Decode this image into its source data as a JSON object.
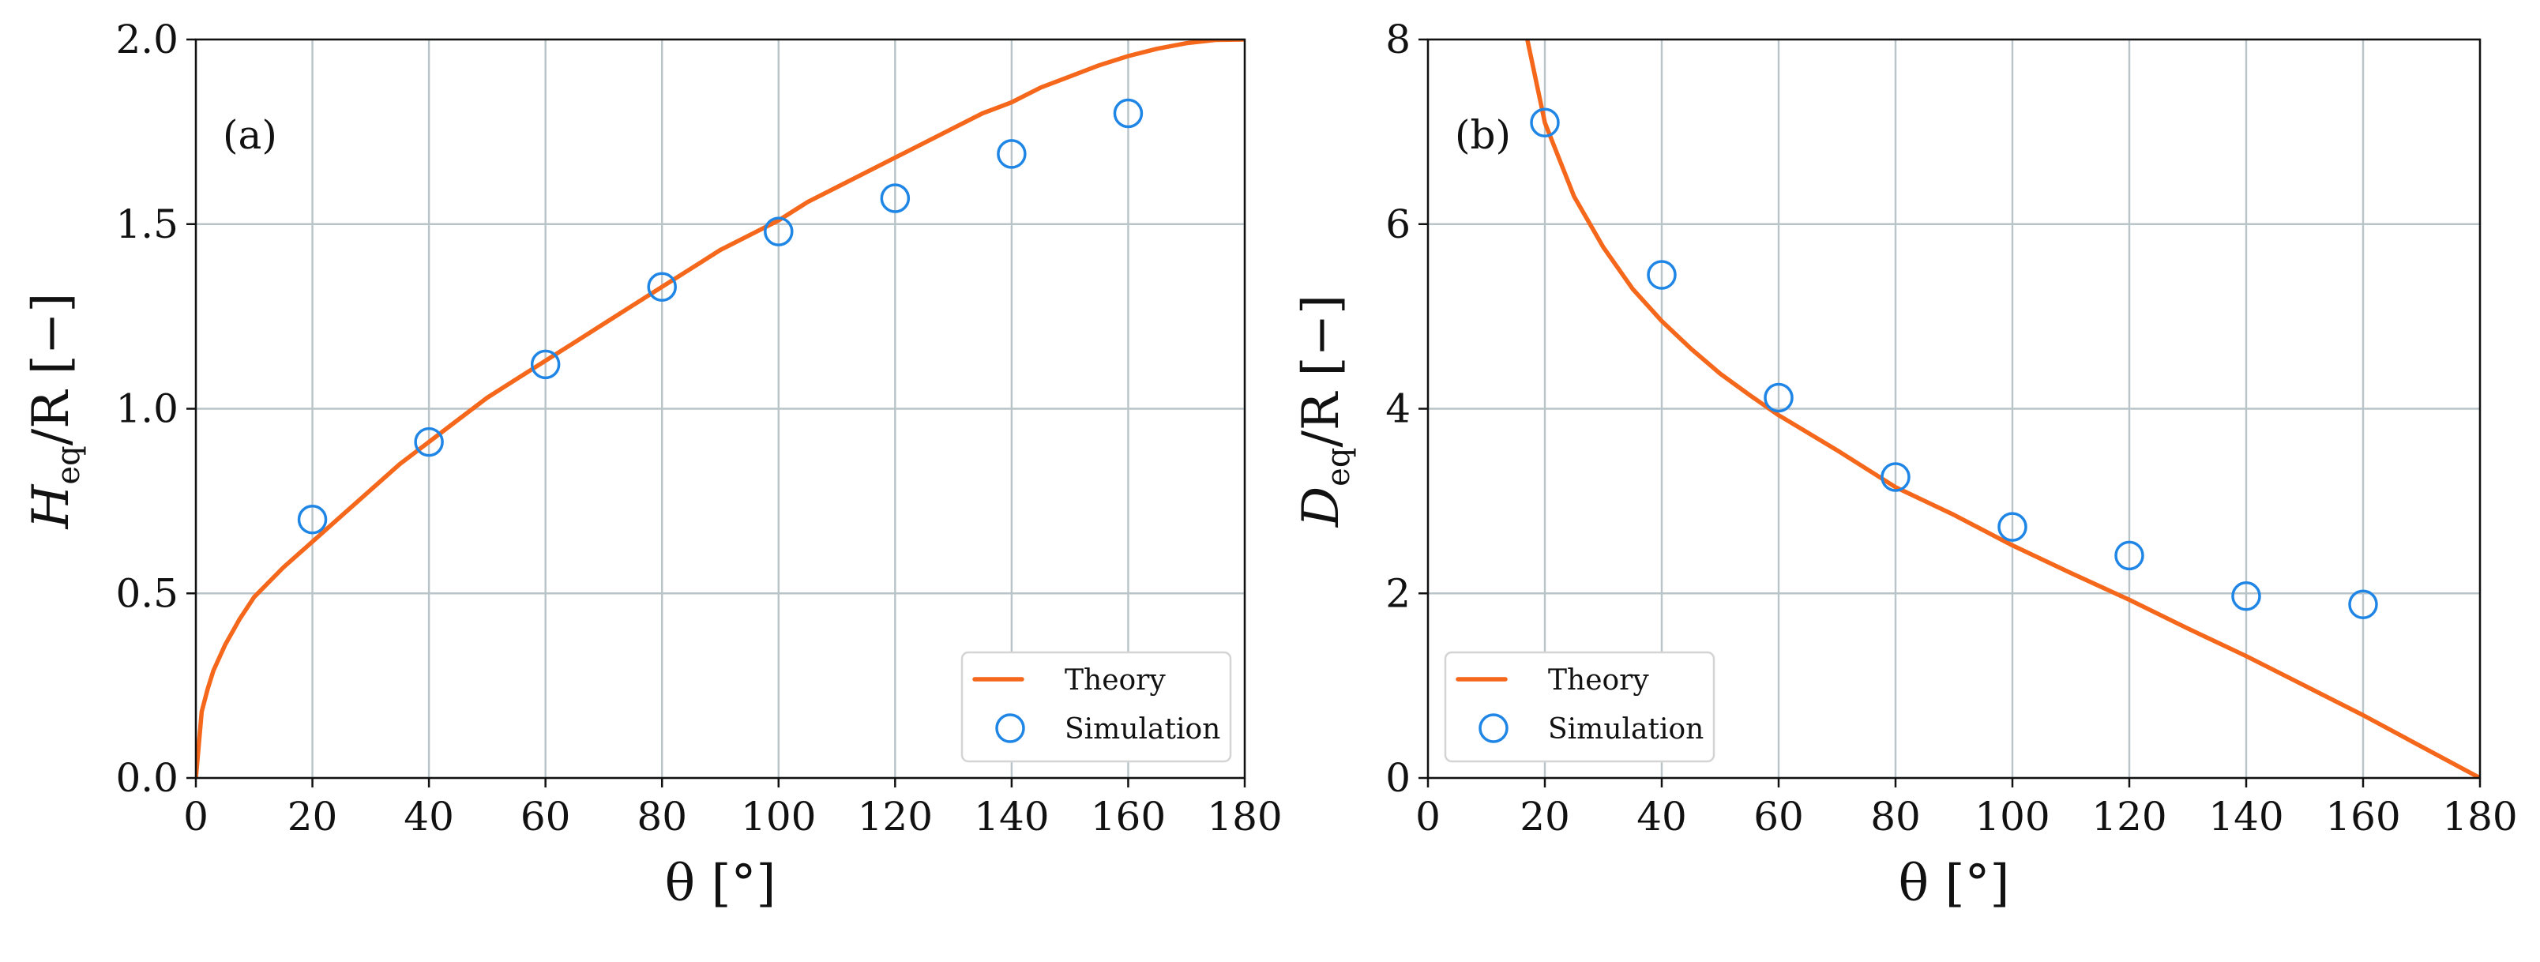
{
  "chart_data": [
    {
      "type": "line",
      "panel_label": "(a)",
      "title": "",
      "xlabel": "θ [°]",
      "ylabel": "Heq/R [−]",
      "ylabel_main": "H",
      "ylabel_sub": "eq",
      "ylabel_rest": "/R [−]",
      "xlim": [
        0,
        180
      ],
      "ylim": [
        0,
        2.0
      ],
      "xticks": [
        0,
        20,
        40,
        60,
        80,
        100,
        120,
        140,
        160,
        180
      ],
      "yticks": [
        0,
        0.5,
        1.0,
        1.5,
        2.0
      ],
      "xtick_labels": [
        "0",
        "20",
        "40",
        "60",
        "80",
        "100",
        "120",
        "140",
        "160",
        "180"
      ],
      "ytick_labels": [
        "0.0",
        "0.5",
        "1.0",
        "1.5",
        "2.0"
      ],
      "grid": true,
      "legend_position": "bottom-right",
      "series": [
        {
          "name": "Theory",
          "kind": "line",
          "color": "#f5671b",
          "x": [
            0,
            1,
            2,
            3,
            5,
            7.5,
            10,
            15,
            20,
            25,
            30,
            35,
            40,
            45,
            50,
            55,
            60,
            65,
            70,
            75,
            80,
            85,
            90,
            95,
            100,
            105,
            110,
            115,
            120,
            125,
            130,
            135,
            140,
            145,
            150,
            155,
            160,
            165,
            170,
            175,
            180
          ],
          "y": [
            0,
            0.18,
            0.24,
            0.29,
            0.36,
            0.43,
            0.49,
            0.57,
            0.64,
            0.71,
            0.78,
            0.85,
            0.91,
            0.97,
            1.03,
            1.08,
            1.13,
            1.18,
            1.23,
            1.28,
            1.33,
            1.38,
            1.43,
            1.47,
            1.51,
            1.56,
            1.6,
            1.64,
            1.68,
            1.72,
            1.76,
            1.8,
            1.83,
            1.87,
            1.9,
            1.93,
            1.955,
            1.975,
            1.99,
            1.999,
            2.0
          ]
        },
        {
          "name": "Simulation",
          "kind": "scatter",
          "color": "#1f86e6",
          "x": [
            20,
            40,
            60,
            80,
            100,
            120,
            140,
            160
          ],
          "y": [
            0.7,
            0.91,
            1.12,
            1.33,
            1.48,
            1.57,
            1.69,
            1.8
          ]
        }
      ]
    },
    {
      "type": "line",
      "panel_label": "(b)",
      "title": "",
      "xlabel": "θ [°]",
      "ylabel": "Deq/R [−]",
      "ylabel_main": "D",
      "ylabel_sub": "eq",
      "ylabel_rest": "/R [−]",
      "xlim": [
        0,
        180
      ],
      "ylim": [
        0,
        8
      ],
      "xticks": [
        0,
        20,
        40,
        60,
        80,
        100,
        120,
        140,
        160,
        180
      ],
      "yticks": [
        0,
        2,
        4,
        6,
        8
      ],
      "xtick_labels": [
        "0",
        "20",
        "40",
        "60",
        "80",
        "100",
        "120",
        "140",
        "160",
        "180"
      ],
      "ytick_labels": [
        "0",
        "2",
        "4",
        "6",
        "8"
      ],
      "grid": true,
      "legend_position": "bottom-left",
      "series": [
        {
          "name": "Theory",
          "kind": "line",
          "color": "#f5671b",
          "x": [
            17,
            20,
            25,
            30,
            35,
            40,
            45,
            50,
            55,
            60,
            70,
            80,
            90,
            100,
            110,
            120,
            130,
            140,
            150,
            160,
            170,
            180
          ],
          "y": [
            8.0,
            7.1,
            6.3,
            5.75,
            5.3,
            4.95,
            4.65,
            4.38,
            4.15,
            3.93,
            3.55,
            3.15,
            2.85,
            2.52,
            2.22,
            1.93,
            1.62,
            1.32,
            1.0,
            0.68,
            0.34,
            0.0
          ]
        },
        {
          "name": "Simulation",
          "kind": "scatter",
          "color": "#1f86e6",
          "x": [
            20,
            40,
            60,
            80,
            100,
            120,
            140,
            160
          ],
          "y": [
            7.1,
            5.45,
            4.12,
            3.26,
            2.72,
            2.41,
            1.97,
            1.88
          ]
        }
      ]
    }
  ]
}
